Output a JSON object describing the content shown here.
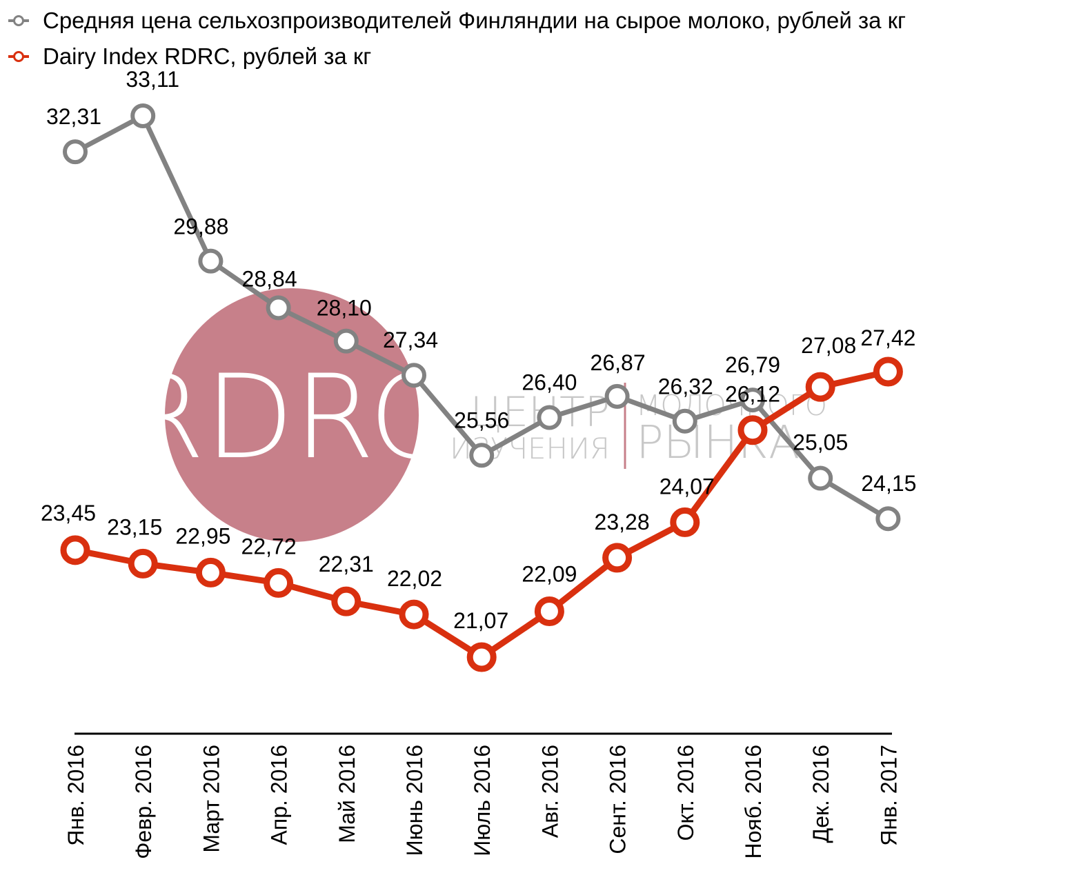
{
  "watermark": {
    "circle_text": "RDRC",
    "left_top": "ЦЕНТР",
    "left_bottom": "ИЗУЧЕНИЯ",
    "right_top": "МОЛОЧНОГО",
    "right_bottom": "РЫНКА",
    "circle_color": "#c7808a",
    "text_color": "#c8c8c8"
  },
  "chart_data": {
    "type": "line",
    "x": [
      "Янв. 2016",
      "Февр. 2016",
      "Март 2016",
      "Апр. 2016",
      "Май 2016",
      "Июнь 2016",
      "Июль 2016",
      "Авг. 2016",
      "Сент. 2016",
      "Окт. 2016",
      "Нояб. 2016",
      "Дек. 2016",
      "Янв. 2017"
    ],
    "series": [
      {
        "name": "Средняя цена сельхозпроизводителей Финляндии на сырое молоко, рублей за кг",
        "color": "#828282",
        "values": [
          32.31,
          33.11,
          29.88,
          28.84,
          28.1,
          27.34,
          25.56,
          26.4,
          26.87,
          26.32,
          26.79,
          25.05,
          24.15
        ],
        "labels": [
          "32,31",
          "33,11",
          "29,88",
          "28,84",
          "28,10",
          "27,34",
          "25,56",
          "26,40",
          "26,87",
          "26,32",
          "26,79",
          "25,05",
          "24,15"
        ]
      },
      {
        "name": "Dairy Index RDRC, рублей за кг",
        "color": "#d9300f",
        "values": [
          23.45,
          23.15,
          22.95,
          22.72,
          22.31,
          22.02,
          21.07,
          22.09,
          23.28,
          24.07,
          26.12,
          27.08,
          27.42
        ],
        "labels": [
          "23,45",
          "23,15",
          "22,95",
          "22,72",
          "22,31",
          "22,02",
          "21,07",
          "22,09",
          "23,28",
          "24,07",
          "26,12",
          "27,08",
          "27,42"
        ]
      }
    ],
    "ylim": [
      0,
      38
    ],
    "grid": false,
    "legend": "top-left"
  }
}
